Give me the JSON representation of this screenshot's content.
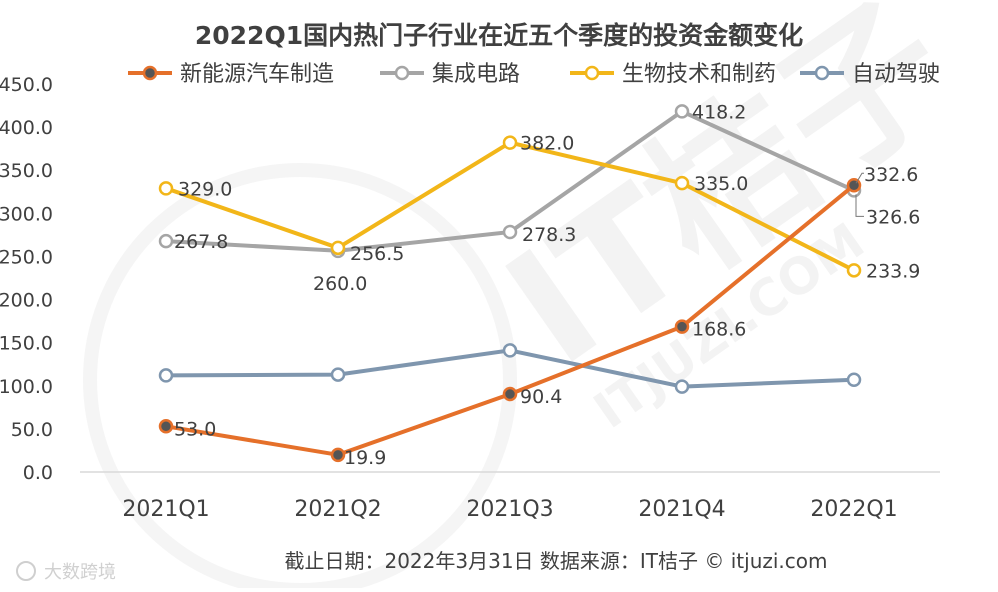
{
  "chart_data": {
    "type": "line",
    "title": "2022Q1国内热门子行业在近五个季度的投资金额变化",
    "categories": [
      "2021Q1",
      "2021Q2",
      "2021Q3",
      "2021Q4",
      "2022Q1"
    ],
    "ylim": [
      0,
      450
    ],
    "yticks": [
      "0.0",
      "50.0",
      "100.0",
      "150.0",
      "200.0",
      "250.0",
      "300.0",
      "350.0",
      "400.0",
      "450.0"
    ],
    "grid": false,
    "legend_position": "top",
    "series": [
      {
        "name": "新能源汽车制造",
        "color": "#E5702A",
        "marker_fill": "#555555",
        "values": [
          53.0,
          19.9,
          90.4,
          168.6,
          332.6
        ],
        "labels": [
          "53.0",
          "19.9",
          "90.4",
          "168.6",
          "332.6"
        ]
      },
      {
        "name": "集成电路",
        "color": "#A5A5A5",
        "marker_fill": "#ffffff",
        "values": [
          267.8,
          256.5,
          278.3,
          418.2,
          326.6
        ],
        "labels": [
          "267.8",
          "256.5",
          "278.3",
          "418.2",
          "326.6"
        ]
      },
      {
        "name": "生物技术和制药",
        "color": "#F2B619",
        "marker_fill": "#ffffff",
        "values": [
          329.0,
          260.0,
          382.0,
          335.0,
          233.9
        ],
        "labels": [
          "329.0",
          "260.0",
          "382.0",
          "335.0",
          "233.9"
        ]
      },
      {
        "name": "自动驾驶",
        "color": "#7F96AE",
        "marker_fill": "#ffffff",
        "values": [
          112.0,
          113.0,
          141.0,
          99.0,
          107.0
        ],
        "labels": []
      }
    ],
    "footer_note": "截止日期：2022年3月31日    数据来源：IT桔子 © itjuzi.com",
    "watermark_text": "IT桔子",
    "watermark_url": "ITJUZI.COM",
    "corner_logo_text": "大数跨境"
  }
}
